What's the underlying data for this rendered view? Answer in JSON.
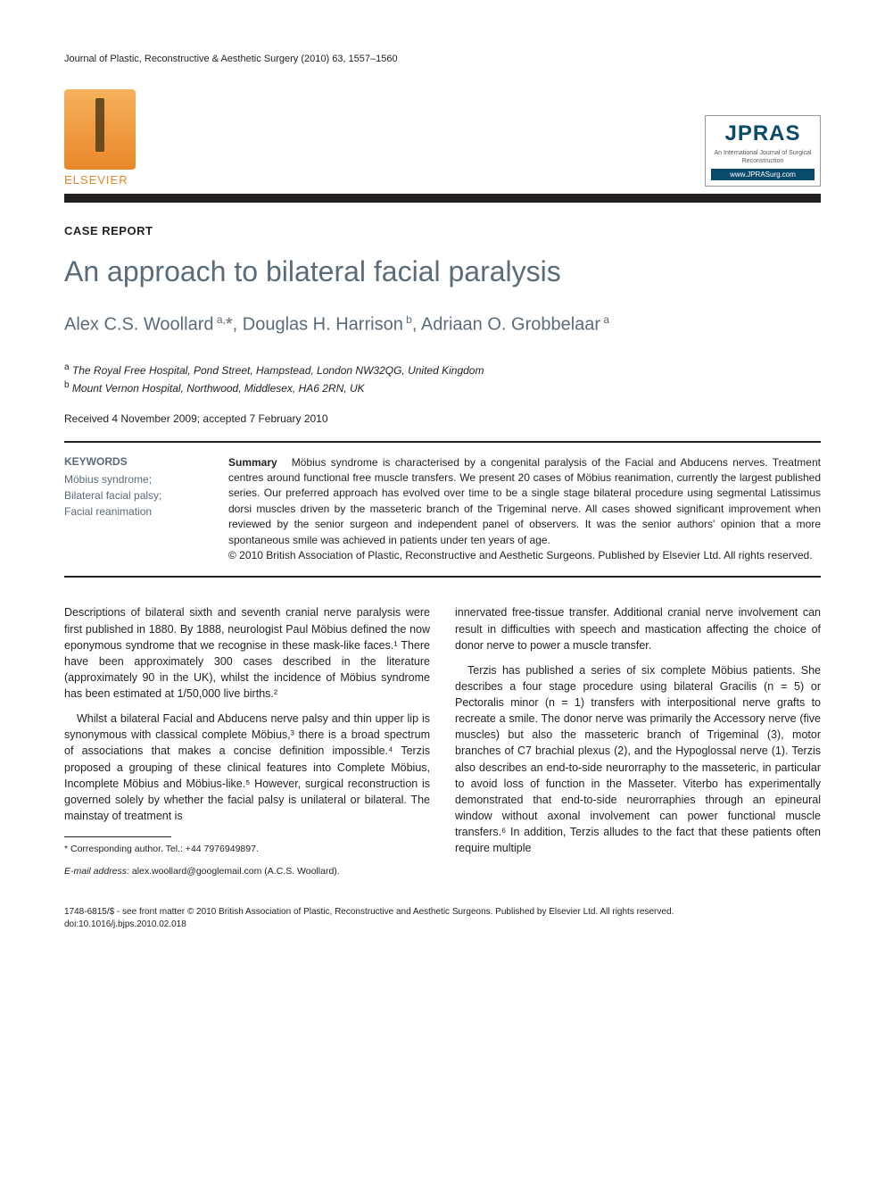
{
  "running_header": "Journal of Plastic, Reconstructive & Aesthetic Surgery (2010) 63, 1557–1560",
  "publisher": {
    "name": "ELSEVIER",
    "logo_color": "#e8872a"
  },
  "journal_box": {
    "acronym": "JPRAS",
    "subtitle": "An International Journal of Surgical Reconstruction",
    "url": "www.JPRASurg.com",
    "brand_color": "#0a4a6b"
  },
  "article_type": "CASE REPORT",
  "title": "An approach to bilateral facial paralysis",
  "authors_html": "Alex C.S. Woollard <sup>a,</sup>*, Douglas H. Harrison <sup>b</sup>, Adriaan O. Grobbelaar <sup>a</sup>",
  "affiliations": {
    "a": "The Royal Free Hospital, Pond Street, Hampstead, London NW32QG, United Kingdom",
    "b": "Mount Vernon Hospital, Northwood, Middlesex, HA6 2RN, UK"
  },
  "history": "Received 4 November 2009; accepted 7 February 2010",
  "keywords": {
    "heading": "KEYWORDS",
    "items": "Möbius syndrome;\nBilateral facial palsy;\nFacial reanimation"
  },
  "summary": {
    "label": "Summary",
    "text": "Möbius syndrome is characterised by a congenital paralysis of the Facial and Abducens nerves. Treatment centres around functional free muscle transfers. We present 20 cases of Möbius reanimation, currently the largest published series. Our preferred approach has evolved over time to be a single stage bilateral procedure using segmental Latissimus dorsi muscles driven by the masseteric branch of the Trigeminal nerve. All cases showed significant improvement when reviewed by the senior surgeon and independent panel of observers. It was the senior authors' opinion that a more spontaneous smile was achieved in patients under ten years of age.",
    "copyright": "© 2010 British Association of Plastic, Reconstructive and Aesthetic Surgeons. Published by Elsevier Ltd. All rights reserved."
  },
  "body": {
    "left": [
      "Descriptions of bilateral sixth and seventh cranial nerve paralysis were first published in 1880. By 1888, neurologist Paul Möbius defined the now eponymous syndrome that we recognise in these mask-like faces.¹ There have been approximately 300 cases described in the literature (approximately 90 in the UK), whilst the incidence of Möbius syndrome has been estimated at 1/50,000 live births.²",
      "Whilst a bilateral Facial and Abducens nerve palsy and thin upper lip is synonymous with classical complete Möbius,³ there is a broad spectrum of associations that makes a concise definition impossible.⁴ Terzis proposed a grouping of these clinical features into Complete Möbius, Incomplete Möbius and Möbius-like.⁵ However, surgical reconstruction is governed solely by whether the facial palsy is unilateral or bilateral. The mainstay of treatment is"
    ],
    "right": [
      "innervated free-tissue transfer. Additional cranial nerve involvement can result in difficulties with speech and mastication affecting the choice of donor nerve to power a muscle transfer.",
      "Terzis has published a series of six complete Möbius patients. She describes a four stage procedure using bilateral Gracilis (n = 5) or Pectoralis minor (n = 1) transfers with interpositional nerve grafts to recreate a smile. The donor nerve was primarily the Accessory nerve (five muscles) but also the masseteric branch of Trigeminal (3), motor branches of C7 brachial plexus (2), and the Hypoglossal nerve (1). Terzis also describes an end-to-side neurorraphy to the masseteric, in particular to avoid loss of function in the Masseter. Viterbo has experimentally demonstrated that end-to-side neurorraphies through an epineural window without axonal involvement can power functional muscle transfers.⁶ In addition, Terzis alludes to the fact that these patients often require multiple"
    ]
  },
  "corresponding": {
    "label": "* Corresponding author. Tel.: +44 7976949897.",
    "email_label": "E-mail address:",
    "email": "alex.woollard@googlemail.com",
    "name": "(A.C.S. Woollard)."
  },
  "footer": {
    "line1": "1748-6815/$ - see front matter © 2010 British Association of Plastic, Reconstructive and Aesthetic Surgeons. Published by Elsevier Ltd. All rights reserved.",
    "line2": "doi:10.1016/j.bjps.2010.02.018"
  },
  "colors": {
    "text": "#231f20",
    "heading": "#5a6b7a",
    "rule": "#231f20"
  }
}
